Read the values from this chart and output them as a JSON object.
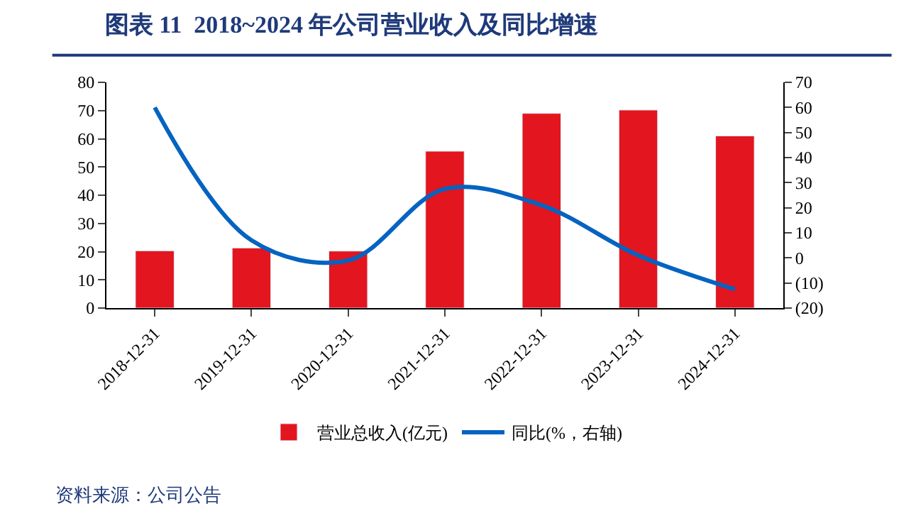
{
  "chart_data": {
    "type": "bar",
    "title": "图表 11  2018~2024 年公司营业收入及同比增速",
    "categories": [
      "2018-12-31",
      "2019-12-31",
      "2020-12-31",
      "2021-12-31",
      "2022-12-31",
      "2023-12-31",
      "2024-12-31"
    ],
    "series": [
      {
        "name": "营业总收入(亿元)",
        "color": "#e3151e",
        "values": [
          20.3,
          21.3,
          20.2,
          55.6,
          69.0,
          70.2,
          61.0
        ]
      },
      {
        "name": "同比(%，右轴)",
        "color": "#0563c1",
        "type": "line",
        "axis": "y2",
        "values": [
          60,
          7,
          -1,
          27.5,
          21,
          1,
          -12.5
        ]
      }
    ],
    "ylim": [
      0,
      80
    ],
    "yticks": [
      0,
      10,
      20,
      30,
      40,
      50,
      60,
      70,
      80
    ],
    "y2lim": [
      -20,
      70
    ],
    "y2ticks": [
      {
        "value": -20,
        "label": "(20)"
      },
      {
        "value": -10,
        "label": "(10)"
      },
      0,
      10,
      20,
      30,
      40,
      50,
      60,
      70
    ],
    "legend": "bottom",
    "marker": "none",
    "annotations": [
      "资料来源：公司公告"
    ]
  }
}
